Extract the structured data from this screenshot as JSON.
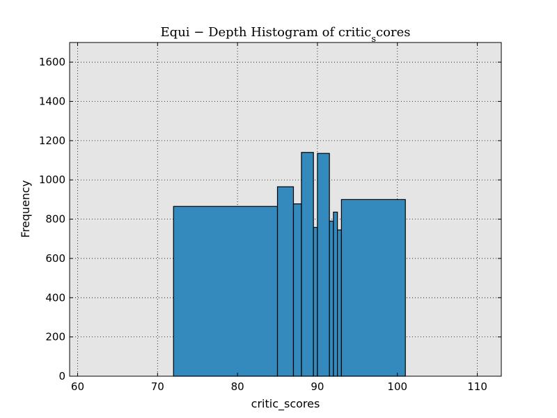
{
  "chart_data": {
    "type": "bar",
    "title": "Equi − Depth Histogram of critic",
    "title_subscript": "s",
    "title_suffix": "cores",
    "xlabel": "critic_scores",
    "ylabel": "Frequency",
    "xlim": [
      59,
      113
    ],
    "ylim": [
      0,
      1700
    ],
    "xticks": [
      60,
      70,
      80,
      90,
      100,
      110
    ],
    "yticks": [
      0,
      200,
      400,
      600,
      800,
      1000,
      1200,
      1400,
      1600
    ],
    "grid": true,
    "bar_color": "#348abd",
    "edge_color": "#000000",
    "background_color": "#e5e5e5",
    "bins": [
      {
        "start": 72,
        "end": 85,
        "value": 865
      },
      {
        "start": 85,
        "end": 87,
        "value": 965
      },
      {
        "start": 87,
        "end": 88,
        "value": 878
      },
      {
        "start": 88,
        "end": 89.5,
        "value": 1140
      },
      {
        "start": 89.5,
        "end": 90,
        "value": 758
      },
      {
        "start": 90,
        "end": 91.5,
        "value": 1135
      },
      {
        "start": 91.5,
        "end": 92,
        "value": 790
      },
      {
        "start": 92,
        "end": 92.5,
        "value": 836
      },
      {
        "start": 92.5,
        "end": 93,
        "value": 745
      },
      {
        "start": 93,
        "end": 101,
        "value": 900
      }
    ]
  }
}
